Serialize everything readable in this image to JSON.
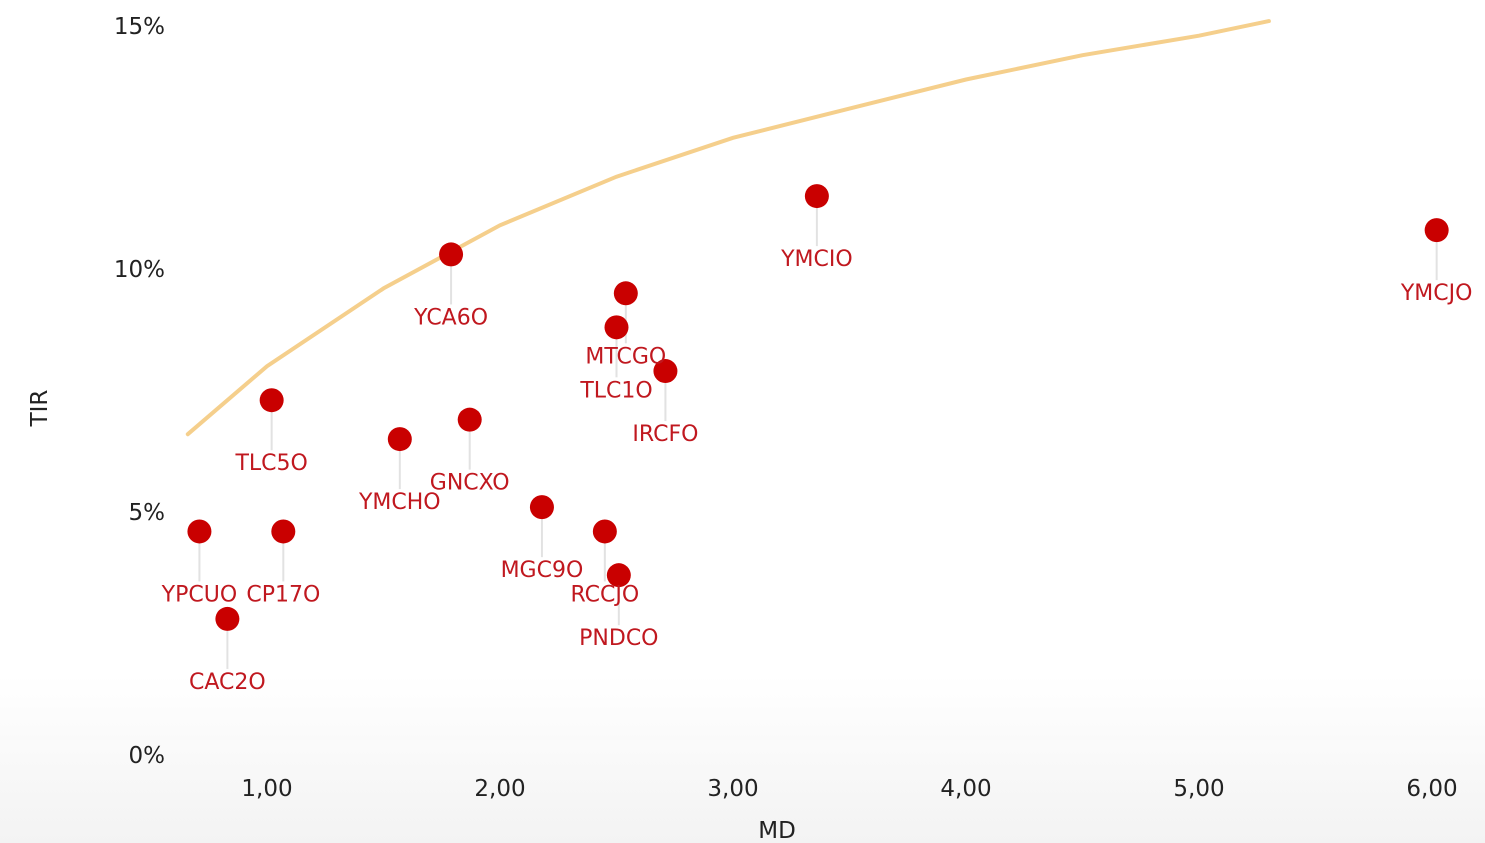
{
  "chart_data": {
    "type": "scatter",
    "xlabel": "MD",
    "ylabel": "TIR",
    "xlim": [
      0.65,
      6.25
    ],
    "ylim": [
      0,
      15
    ],
    "x_ticks": [
      {
        "value": 1,
        "label": "1,00"
      },
      {
        "value": 2,
        "label": "2,00"
      },
      {
        "value": 3,
        "label": "3,00"
      },
      {
        "value": 4,
        "label": "4,00"
      },
      {
        "value": 5,
        "label": "5,00"
      },
      {
        "value": 6,
        "label": "6,00"
      }
    ],
    "y_ticks": [
      {
        "value": 0,
        "label": "0%"
      },
      {
        "value": 5,
        "label": "5%"
      },
      {
        "value": 10,
        "label": "10%"
      },
      {
        "value": 15,
        "label": "15%"
      }
    ],
    "grid": false,
    "legend": "none",
    "point_color": "#c90000",
    "label_color": "#c0181f",
    "curve_color": "#f5cf8c",
    "points": [
      {
        "label": "YCA6O",
        "x": 1.79,
        "y": 10.3
      },
      {
        "label": "YMCIO",
        "x": 3.36,
        "y": 11.5
      },
      {
        "label": "YMCJO",
        "x": 6.02,
        "y": 10.8
      },
      {
        "label": "TLC1O",
        "x": 2.5,
        "y": 8.8
      },
      {
        "label": "MTCGO",
        "x": 2.54,
        "y": 9.5
      },
      {
        "label": "IRCFO",
        "x": 2.71,
        "y": 7.9
      },
      {
        "label": "TLC5O",
        "x": 1.02,
        "y": 7.3
      },
      {
        "label": "YMCHO",
        "x": 1.57,
        "y": 6.5
      },
      {
        "label": "GNCXO",
        "x": 1.87,
        "y": 6.9
      },
      {
        "label": "MGC9O",
        "x": 2.18,
        "y": 5.1
      },
      {
        "label": "RCCJO",
        "x": 2.45,
        "y": 4.6
      },
      {
        "label": "PNDCO",
        "x": 2.51,
        "y": 3.7
      },
      {
        "label": "YPCUO",
        "x": 0.71,
        "y": 4.6
      },
      {
        "label": "CP17O",
        "x": 1.07,
        "y": 4.6
      },
      {
        "label": "CAC2O",
        "x": 0.83,
        "y": 2.8
      }
    ],
    "trend_curve": {
      "type": "logarithmic",
      "x_range": [
        0.66,
        5.3
      ],
      "points": [
        [
          0.66,
          6.6
        ],
        [
          1.0,
          8.0
        ],
        [
          1.5,
          9.6
        ],
        [
          2.0,
          10.9
        ],
        [
          2.5,
          11.9
        ],
        [
          3.0,
          12.7
        ],
        [
          3.5,
          13.3
        ],
        [
          4.0,
          13.9
        ],
        [
          4.5,
          14.4
        ],
        [
          5.0,
          14.8
        ],
        [
          5.3,
          15.1
        ]
      ]
    }
  }
}
